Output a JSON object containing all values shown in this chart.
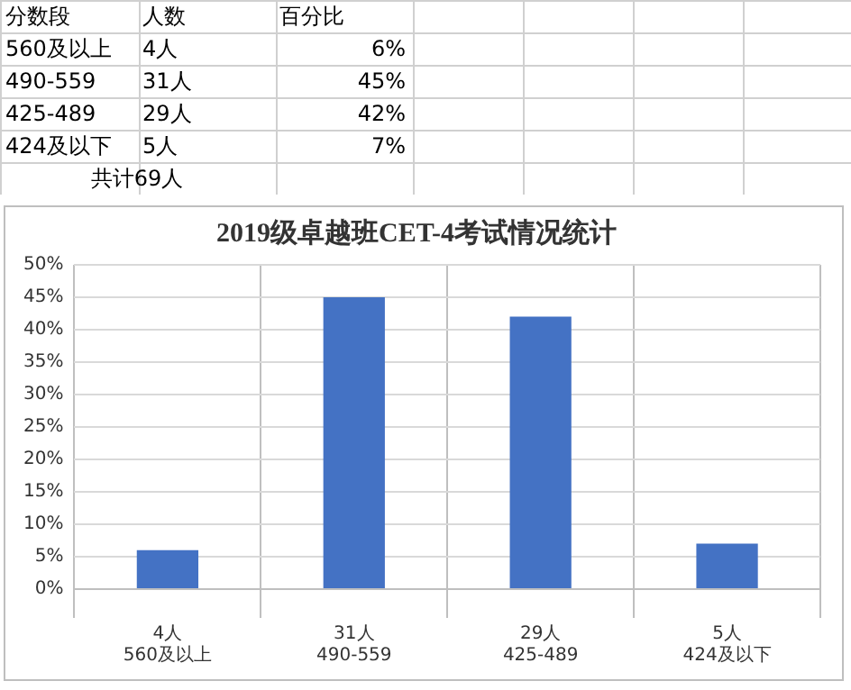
{
  "chart_data": {
    "type": "bar",
    "title": "2019级卓越班CET-4考试情况统计",
    "categories": [
      "4人\n560及以上",
      "31人\n490-559",
      "29人\n425-489",
      "5人\n424及以下"
    ],
    "values": [
      6,
      45,
      42,
      7
    ],
    "color": "#4472c4",
    "ylim": [
      0,
      50
    ],
    "yticks": [
      {
        "value": 0,
        "label": "0%"
      },
      {
        "value": 5,
        "label": "5%"
      },
      {
        "value": 10,
        "label": "10%"
      },
      {
        "value": 15,
        "label": "15%"
      },
      {
        "value": 20,
        "label": "20%"
      },
      {
        "value": 25,
        "label": "25%"
      },
      {
        "value": 30,
        "label": "30%"
      },
      {
        "value": 35,
        "label": "35%"
      },
      {
        "value": 40,
        "label": "40%"
      },
      {
        "value": 45,
        "label": "45%"
      },
      {
        "value": 50,
        "label": "50%"
      }
    ],
    "grid": true,
    "annotations": [
      "分数段",
      "人数",
      "百分比",
      "560及以上",
      "4人",
      "6%",
      "490-559",
      "31人",
      "45%",
      "425-489",
      "29人",
      "42%",
      "424及以下",
      "5人",
      "7%",
      "共计69人"
    ]
  }
}
